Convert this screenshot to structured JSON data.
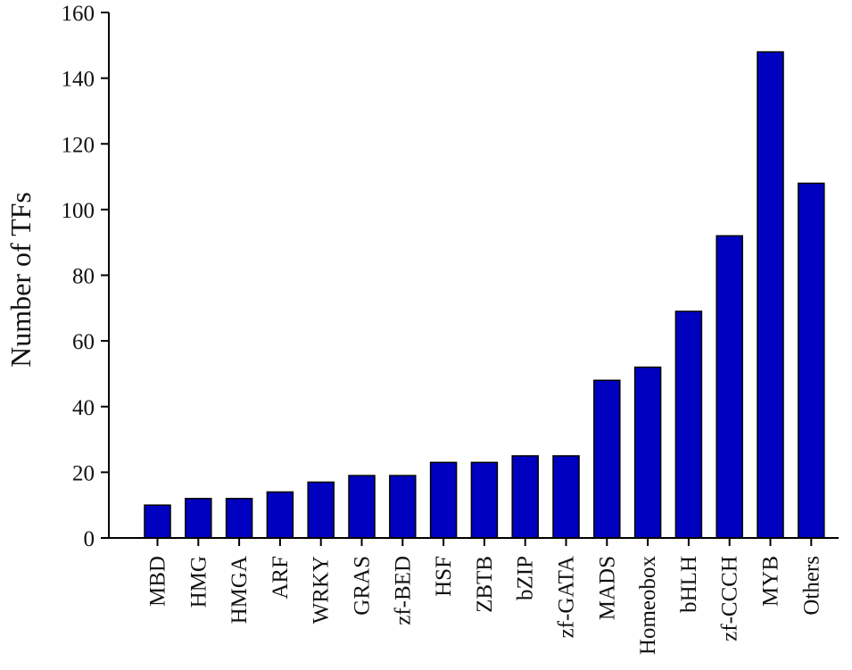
{
  "chart_data": {
    "type": "bar",
    "title": "",
    "xlabel": "",
    "ylabel": "Number of TFs",
    "ylim": [
      0,
      160
    ],
    "yticks": [
      0,
      20,
      40,
      60,
      80,
      100,
      120,
      140,
      160
    ],
    "grid": false,
    "categories": [
      "MBD",
      "HMG",
      "HMGA",
      "ARF",
      "WRKY",
      "GRAS",
      "zf-BED",
      "HSF",
      "ZBTB",
      "bZIP",
      "zf-GATA",
      "MADS",
      "Homeobox",
      "bHLH",
      "zf-CCCH",
      "MYB",
      "Others"
    ],
    "values": [
      10,
      12,
      12,
      14,
      17,
      19,
      19,
      23,
      23,
      25,
      25,
      48,
      52,
      69,
      92,
      148,
      108
    ],
    "colors": {
      "bar_fill": "#0000c0",
      "bar_stroke": "#000000",
      "axis": "#000000",
      "text": "#111111"
    }
  }
}
